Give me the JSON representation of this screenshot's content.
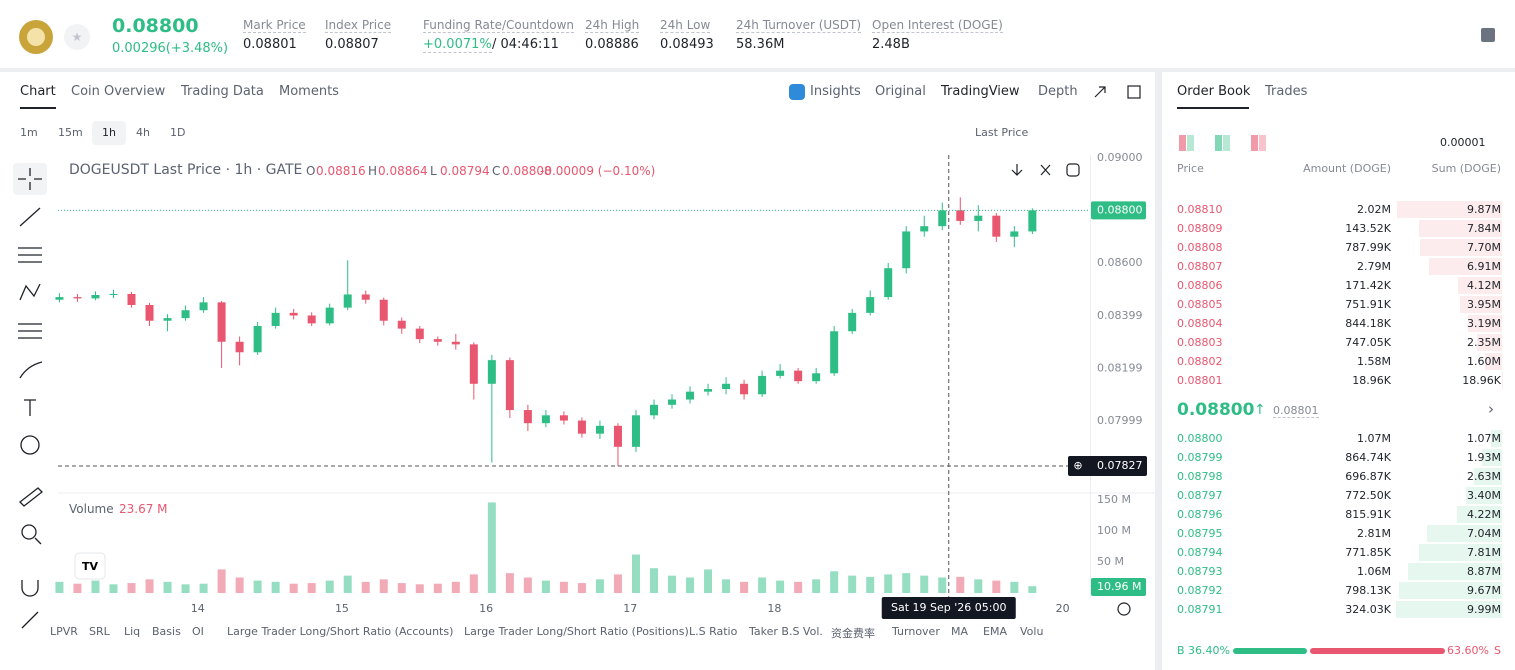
{
  "header": {
    "price": "0.08800",
    "change": "0.00296(+3.48%)",
    "stats": [
      {
        "label": "Mark Price",
        "value": "0.08801"
      },
      {
        "label": "Index Price",
        "value": "0.08807"
      },
      {
        "label": "Funding Rate/Countdown",
        "value": "+0.0071%",
        "extra": "/ 04:46:11"
      },
      {
        "label": "24h High",
        "value": "0.08886"
      },
      {
        "label": "24h Low",
        "value": "0.08493"
      },
      {
        "label": "24h Turnover (USDT)",
        "value": "58.36M"
      },
      {
        "label": "Open Interest (DOGE)",
        "value": "2.48B"
      }
    ]
  },
  "tabs": [
    "Chart",
    "Coin Overview",
    "Trading Data",
    "Moments"
  ],
  "views": [
    "Insights",
    "Original",
    "TradingView",
    "Depth"
  ],
  "intervals": [
    "1m",
    "15m",
    "1h",
    "4h",
    "1D"
  ],
  "price_source": "Last Price",
  "chart_data": {
    "type": "candlestick",
    "title": "DOGEUSDT Last Price · 1h · GATE",
    "legend": [
      {
        "label": "O",
        "value": "0.08816"
      },
      {
        "label": "H",
        "value": "0.08864"
      },
      {
        "label": "L",
        "value": "0.08794"
      },
      {
        "label": "C",
        "value": "0.08808"
      }
    ],
    "legend_change": "-0.00009 (−0.10%)",
    "open": [
      0.0846,
      0.0847,
      0.08465,
      0.08478,
      0.08482,
      0.0844,
      0.0838,
      0.0839,
      0.0842,
      0.0845,
      0.083,
      0.0826,
      0.0836,
      0.0841,
      0.084,
      0.0837,
      0.0843,
      0.0848,
      0.0846,
      0.0838,
      0.0835,
      0.0831,
      0.083,
      0.0829,
      0.0814,
      0.0823,
      0.0804,
      0.0799,
      0.0802,
      0.08,
      0.0795,
      0.0798,
      0.079,
      0.0802,
      0.0806,
      0.0808,
      0.0811,
      0.0812,
      0.0814,
      0.081,
      0.0817,
      0.0819,
      0.0815,
      0.0818,
      0.0834,
      0.0841,
      0.0847,
      0.0858,
      0.0872,
      0.0874,
      0.088,
      0.0876,
      0.0878,
      0.087,
      0.0872
    ],
    "high": [
      0.08485,
      0.08482,
      0.08492,
      0.08498,
      0.0849,
      0.08448,
      0.08405,
      0.08438,
      0.0847,
      0.08455,
      0.0832,
      0.08375,
      0.0843,
      0.08425,
      0.08412,
      0.08445,
      0.0861,
      0.08495,
      0.08468,
      0.08392,
      0.0836,
      0.0832,
      0.0833,
      0.08298,
      0.0825,
      0.0824,
      0.0806,
      0.0804,
      0.08035,
      0.08012,
      0.08,
      0.0799,
      0.0804,
      0.0808,
      0.081,
      0.0813,
      0.0814,
      0.08165,
      0.08155,
      0.0819,
      0.08215,
      0.082,
      0.082,
      0.0836,
      0.08425,
      0.08495,
      0.086,
      0.0874,
      0.0878,
      0.0883,
      0.0885,
      0.0882,
      0.0879,
      0.0874,
      0.08808
    ],
    "low": [
      0.0845,
      0.08452,
      0.08458,
      0.08466,
      0.0843,
      0.0836,
      0.0834,
      0.0838,
      0.0841,
      0.082,
      0.0821,
      0.0825,
      0.0835,
      0.08385,
      0.0836,
      0.08362,
      0.0842,
      0.08445,
      0.08362,
      0.0833,
      0.08295,
      0.08285,
      0.0827,
      0.0808,
      0.0784,
      0.0801,
      0.0796,
      0.07975,
      0.07985,
      0.07935,
      0.0793,
      0.07827,
      0.0788,
      0.08005,
      0.08045,
      0.08065,
      0.08095,
      0.081,
      0.0808,
      0.0809,
      0.0816,
      0.0814,
      0.0814,
      0.0817,
      0.0833,
      0.084,
      0.0846,
      0.0856,
      0.087,
      0.08725,
      0.08745,
      0.0872,
      0.0868,
      0.0866,
      0.0871
    ],
    "close": [
      0.0847,
      0.08465,
      0.08478,
      0.08482,
      0.0844,
      0.0838,
      0.0839,
      0.0842,
      0.0845,
      0.083,
      0.0826,
      0.0836,
      0.0841,
      0.084,
      0.0837,
      0.0843,
      0.0848,
      0.0846,
      0.0838,
      0.0835,
      0.0831,
      0.083,
      0.0829,
      0.0814,
      0.0823,
      0.0804,
      0.0799,
      0.0802,
      0.08,
      0.0795,
      0.0798,
      0.079,
      0.0802,
      0.0806,
      0.0808,
      0.0811,
      0.0812,
      0.0814,
      0.081,
      0.0817,
      0.0819,
      0.0815,
      0.0818,
      0.0834,
      0.0841,
      0.0847,
      0.0858,
      0.0872,
      0.0874,
      0.088,
      0.0876,
      0.0878,
      0.087,
      0.0872,
      0.088
    ],
    "volume": [
      18,
      15,
      20,
      14,
      16,
      22,
      18,
      14,
      15,
      38,
      25,
      20,
      18,
      15,
      16,
      20,
      28,
      18,
      22,
      16,
      14,
      15,
      18,
      30,
      146,
      32,
      25,
      20,
      18,
      16,
      22,
      30,
      62,
      40,
      28,
      25,
      38,
      22,
      18,
      25,
      20,
      18,
      22,
      35,
      28,
      26,
      30,
      32,
      28,
      25,
      26,
      22,
      20,
      18,
      11
    ],
    "up_color": "#2ebd85",
    "down_color": "#e8566f",
    "ylim": [
      0.07728,
      0.09011
    ],
    "yticks": [
      {
        "value": 0.09,
        "label": "0.09000"
      },
      {
        "value": 0.086,
        "label": "0.08600"
      },
      {
        "value": 0.08399,
        "label": "0.08399"
      },
      {
        "value": 0.08199,
        "label": "0.08199"
      },
      {
        "value": 0.07999,
        "label": "0.07999"
      }
    ],
    "last_price": {
      "value": 0.088,
      "label": "0.08800"
    },
    "crosshair_price": {
      "value": 0.07827,
      "label": "0.07827"
    },
    "crosshair_time": "Sat 19 Sep '26   05:00",
    "crosshair_day": 19.21,
    "volume_title": "Volume",
    "volume_value": "23.67 M",
    "volume_current": "10.96 M",
    "volume_ylim": [
      0,
      158
    ],
    "volume_ticks": [
      {
        "value": 150,
        "label": "150 M"
      },
      {
        "value": 100,
        "label": "100 M"
      },
      {
        "value": 50,
        "label": "50 M"
      }
    ],
    "xlim": [
      13.03,
      20.19
    ],
    "xticks": [
      14,
      15,
      16,
      17,
      18,
      20
    ]
  },
  "indicators": [
    "LPVR",
    "SRL",
    "Liq",
    "Basis",
    "OI",
    "Large Trader Long/Short Ratio (Accounts)",
    "Large Trader Long/Short Ratio (Positions)",
    "L.S Ratio",
    "Taker B.S Vol.",
    "资金费率",
    "Turnover",
    "MA",
    "EMA",
    "Volu"
  ],
  "order_book": {
    "tabs": [
      "Order Book",
      "Trades"
    ],
    "precision": "0.00001",
    "columns": [
      "Price",
      "Amount (DOGE)",
      "Sum (DOGE)"
    ],
    "asks": [
      {
        "price": "0.08810",
        "amount": "2.02M",
        "sum": {
          "value": 9.87,
          "label": "9.87M"
        }
      },
      {
        "price": "0.08809",
        "amount": "143.52K",
        "sum": {
          "value": 7.84,
          "label": "7.84M"
        }
      },
      {
        "price": "0.08808",
        "amount": "787.99K",
        "sum": {
          "value": 7.7,
          "label": "7.70M"
        }
      },
      {
        "price": "0.08807",
        "amount": "2.79M",
        "sum": {
          "value": 6.91,
          "label": "6.91M"
        }
      },
      {
        "price": "0.08806",
        "amount": "171.42K",
        "sum": {
          "value": 4.12,
          "label": "4.12M"
        }
      },
      {
        "price": "0.08805",
        "amount": "751.91K",
        "sum": {
          "value": 3.95,
          "label": "3.95M"
        }
      },
      {
        "price": "0.08804",
        "amount": "844.18K",
        "sum": {
          "value": 3.19,
          "label": "3.19M"
        }
      },
      {
        "price": "0.08803",
        "amount": "747.05K",
        "sum": {
          "value": 2.35,
          "label": "2.35M"
        }
      },
      {
        "price": "0.08802",
        "amount": "1.58M",
        "sum": {
          "value": 1.6,
          "label": "1.60M"
        }
      },
      {
        "price": "0.08801",
        "amount": "18.96K",
        "sum": {
          "value": 0.01896,
          "label": "18.96K"
        }
      }
    ],
    "last": "0.08800",
    "mark": "0.08801",
    "bids": [
      {
        "price": "0.08800",
        "amount": "1.07M",
        "sum": {
          "value": 1.07,
          "label": "1.07M"
        }
      },
      {
        "price": "0.08799",
        "amount": "864.74K",
        "sum": {
          "value": 1.93,
          "label": "1.93M"
        }
      },
      {
        "price": "0.08798",
        "amount": "696.87K",
        "sum": {
          "value": 2.63,
          "label": "2.63M"
        }
      },
      {
        "price": "0.08797",
        "amount": "772.50K",
        "sum": {
          "value": 3.4,
          "label": "3.40M"
        }
      },
      {
        "price": "0.08796",
        "amount": "815.91K",
        "sum": {
          "value": 4.22,
          "label": "4.22M"
        }
      },
      {
        "price": "0.08795",
        "amount": "2.81M",
        "sum": {
          "value": 7.04,
          "label": "7.04M"
        }
      },
      {
        "price": "0.08794",
        "amount": "771.85K",
        "sum": {
          "value": 7.81,
          "label": "7.81M"
        }
      },
      {
        "price": "0.08793",
        "amount": "1.06M",
        "sum": {
          "value": 8.87,
          "label": "8.87M"
        }
      },
      {
        "price": "0.08792",
        "amount": "798.13K",
        "sum": {
          "value": 9.67,
          "label": "9.67M"
        }
      },
      {
        "price": "0.08791",
        "amount": "324.03K",
        "sum": {
          "value": 9.99,
          "label": "9.99M"
        }
      }
    ],
    "buy_letter": "B",
    "sell_letter": "S",
    "buy": {
      "value": 36.4,
      "label": "36.40%"
    },
    "sell": {
      "value": 63.6,
      "label": "63.60%"
    }
  }
}
